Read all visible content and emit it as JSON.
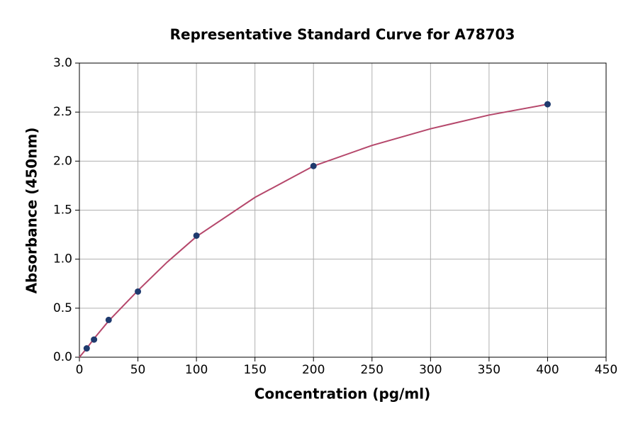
{
  "chart_data": {
    "type": "scatter",
    "title": "Representative Standard Curve for A78703",
    "x_label": "Concentration (pg/ml)",
    "y_label": "Absorbance (450nm)",
    "xlim": [
      0,
      450
    ],
    "xticks": [
      0,
      50,
      100,
      150,
      200,
      250,
      300,
      350,
      400,
      450
    ],
    "ylim": [
      0,
      3
    ],
    "yticks": [
      {
        "value": 0,
        "label": "0.0"
      },
      {
        "value": 0.5,
        "label": "0.5"
      },
      {
        "value": 1,
        "label": "1.0"
      },
      {
        "value": 1.5,
        "label": "1.5"
      },
      {
        "value": 2,
        "label": "2.0"
      },
      {
        "value": 2.5,
        "label": "2.5"
      },
      {
        "value": 3,
        "label": "3.0"
      }
    ],
    "grid": true,
    "points": {
      "color": "#1f3a6e",
      "x": [
        6.25,
        12.5,
        25,
        50,
        100,
        200,
        400
      ],
      "values": [
        0.09,
        0.18,
        0.38,
        0.67,
        1.24,
        1.95,
        2.58
      ]
    },
    "curve": {
      "color": "#b5476b",
      "x": [
        0,
        6.25,
        12.5,
        25,
        50,
        75,
        100,
        150,
        200,
        250,
        300,
        350,
        400
      ],
      "values": [
        0,
        0.09,
        0.19,
        0.37,
        0.68,
        0.97,
        1.23,
        1.63,
        1.95,
        2.16,
        2.33,
        2.47,
        2.58
      ]
    }
  }
}
